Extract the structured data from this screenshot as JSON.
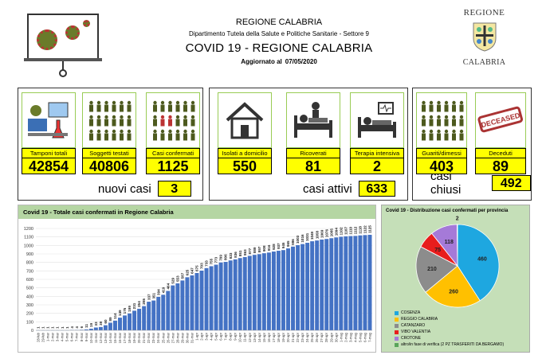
{
  "header": {
    "region": "REGIONE CALABRIA",
    "department": "Dipartimento Tutela della Salute e Politiche Sanitarie - Settore 9",
    "title": "COVID 19 - REGIONE CALABRIA",
    "updated_label": "Aggiornato al",
    "updated_date": "07/05/2020",
    "brand_top": "REGIONE",
    "brand_bottom": "CALABRIA"
  },
  "stats": {
    "tamponi": {
      "label": "Tamponi totali",
      "value": "42854",
      "icon": "lab-test-icon"
    },
    "soggetti": {
      "label": "Soggetti testati",
      "value": "40806",
      "icon": "people-grid-icon"
    },
    "confermati": {
      "label": "Casi confermati",
      "value": "1125",
      "icon": "infected-person-icon"
    },
    "isolati": {
      "label": "Isolati a domicilio",
      "value": "550",
      "icon": "house-icon"
    },
    "ricoverati": {
      "label": "Ricoverati",
      "value": "81",
      "icon": "hospital-bed-icon"
    },
    "terapia": {
      "label": "Terapia intensiva",
      "value": "2",
      "icon": "intensive-care-icon"
    },
    "guariti": {
      "label": "Guariti/dimessi",
      "value": "403",
      "icon": "recovered-person-icon"
    },
    "deceduti": {
      "label": "Deceduti",
      "value": "89",
      "icon": "deceased-stamp-icon"
    }
  },
  "summary": {
    "nuovi_label": "nuovi casi",
    "nuovi_value": "3",
    "attivi_label": "casi attivi",
    "attivi_value": "633",
    "chiusi_label": "casi chiusi",
    "chiusi_value": "492"
  },
  "deceased_stamp": "DECEASED",
  "colors": {
    "yellow": "#ffff00",
    "bar": "#4472c4",
    "green_header": "#b5d6a3"
  },
  "chart_data": [
    {
      "type": "bar",
      "title": "Covid 19 - Totale casi confermati in Regione Calabria",
      "ylim": [
        0,
        1200
      ],
      "yticks": [
        0,
        100,
        200,
        300,
        400,
        500,
        600,
        700,
        800,
        900,
        1000,
        1100,
        1200
      ],
      "categories": [
        "28-feb",
        "29-feb",
        "1-mar",
        "2-mar",
        "3-mar",
        "4-mar",
        "5-mar",
        "6-mar",
        "7-mar",
        "8-mar",
        "9-mar",
        "10-mar",
        "11-mar",
        "12-mar",
        "13-mar",
        "14-mar",
        "15-mar",
        "16-mar",
        "17-mar",
        "18-mar",
        "19-mar",
        "20-mar",
        "21-mar",
        "22-mar",
        "23-mar",
        "24-mar",
        "25-mar",
        "26-mar",
        "27-mar",
        "28-mar",
        "29-mar",
        "30-mar",
        "31-mar",
        "1-apr",
        "2-apr",
        "3-apr",
        "4-apr",
        "5-apr",
        "6-apr",
        "7-apr",
        "8-apr",
        "9-apr",
        "10-apr",
        "11-apr",
        "12-apr",
        "13-apr",
        "14-apr",
        "15-apr",
        "16-apr",
        "17-apr",
        "18-apr",
        "19-apr",
        "20-apr",
        "21-apr",
        "22-apr",
        "23-apr",
        "24-apr",
        "25-apr",
        "26-apr",
        "27-apr",
        "28-apr",
        "29-apr",
        "30-apr",
        "1-mag",
        "2-mag",
        "3-mag",
        "4-mag",
        "5-mag",
        "6-mag",
        "7-mag"
      ],
      "values": [
        1,
        1,
        1,
        1,
        1,
        1,
        1,
        4,
        4,
        6,
        11,
        19,
        33,
        39,
        60,
        89,
        114,
        149,
        175,
        199,
        231,
        254,
        285,
        337,
        351,
        394,
        419,
        464,
        529,
        553,
        587,
        625,
        647,
        675,
        703,
        733,
        755,
        773,
        799,
        806,
        823,
        836,
        851,
        863,
        877,
        889,
        897,
        908,
        916,
        928,
        937,
        945,
        965,
        986,
        1003,
        1016,
        1031,
        1049,
        1058,
        1069,
        1076,
        1085,
        1094,
        1102,
        1107,
        1110,
        1112,
        1118,
        1122,
        1125
      ]
    },
    {
      "type": "pie",
      "title": "Covid 19 - Distribuzione casi confermati per provincia",
      "categories": [
        "COSENZA",
        "REGGIO CALABRIA",
        "CATANZARO",
        "VIBO VALENTIA",
        "CROTONE",
        "altro/in fase di verifica (2 PZ TRASFERITI DA BERGAMO)"
      ],
      "values": [
        460,
        260,
        210,
        75,
        118,
        2
      ],
      "colors": [
        "#1ea7e0",
        "#ffc000",
        "#8c8c8c",
        "#e81d1d",
        "#a57ad8",
        "#5aa55a"
      ]
    }
  ]
}
